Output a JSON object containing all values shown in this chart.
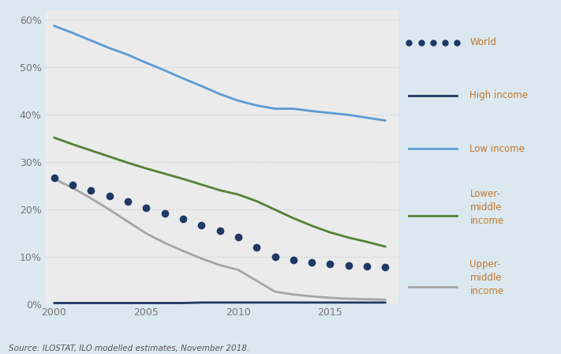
{
  "source_text": "Source: ILOSTAT, ILO modelled estimates, November 2018.",
  "years": [
    2000,
    2001,
    2002,
    2003,
    2004,
    2005,
    2006,
    2007,
    2008,
    2009,
    2010,
    2011,
    2012,
    2013,
    2014,
    2015,
    2016,
    2017,
    2018
  ],
  "world": [
    0.267,
    0.252,
    0.24,
    0.229,
    0.217,
    0.204,
    0.192,
    0.18,
    0.168,
    0.155,
    0.143,
    0.121,
    0.101,
    0.094,
    0.089,
    0.086,
    0.083,
    0.081,
    0.079
  ],
  "high_income": [
    0.003,
    0.003,
    0.003,
    0.003,
    0.003,
    0.003,
    0.003,
    0.003,
    0.004,
    0.004,
    0.004,
    0.004,
    0.004,
    0.004,
    0.004,
    0.004,
    0.004,
    0.004,
    0.004
  ],
  "low_income": [
    0.588,
    0.573,
    0.557,
    0.541,
    0.527,
    0.51,
    0.494,
    0.477,
    0.461,
    0.444,
    0.43,
    0.42,
    0.413,
    0.413,
    0.408,
    0.404,
    0.4,
    0.394,
    0.388
  ],
  "lower_middle_income": [
    0.352,
    0.338,
    0.325,
    0.312,
    0.299,
    0.287,
    0.276,
    0.265,
    0.253,
    0.241,
    0.232,
    0.218,
    0.2,
    0.182,
    0.166,
    0.152,
    0.141,
    0.132,
    0.122
  ],
  "upper_middle_income": [
    0.265,
    0.246,
    0.224,
    0.2,
    0.175,
    0.15,
    0.13,
    0.113,
    0.097,
    0.083,
    0.073,
    0.05,
    0.027,
    0.021,
    0.017,
    0.014,
    0.012,
    0.011,
    0.01
  ],
  "color_world": "#1f3864",
  "color_high_income": "#1f3864",
  "color_low_income": "#5b9bd5",
  "color_lower_middle": "#538135",
  "color_upper_middle": "#a5a5a5",
  "bg_plot": "#ebebeb",
  "bg_fig": "#dce8f0",
  "bg_legend": "#ffffff",
  "legend_text_color": "#c07830",
  "tick_color": "#777777",
  "ylim": [
    0,
    0.62
  ],
  "yticks": [
    0,
    0.1,
    0.2,
    0.3,
    0.4,
    0.5,
    0.6
  ],
  "ytick_labels": [
    "0%",
    "10%",
    "20%",
    "30%",
    "40%",
    "50%",
    "60%"
  ],
  "xticks": [
    2000,
    2005,
    2010,
    2015
  ],
  "xlim": [
    1999.5,
    2018.7
  ],
  "grid_color": "#c8c8c8",
  "grid_linestyle": ":",
  "line_width": 2.0,
  "dot_size": 7
}
